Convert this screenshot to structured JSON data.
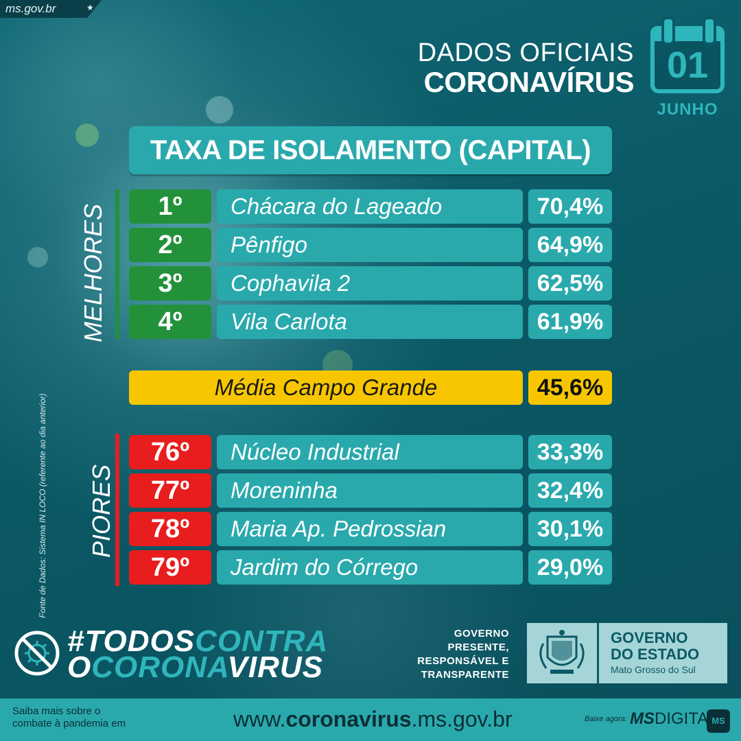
{
  "site_tag": {
    "text": "ms.gov.br",
    "star": "★"
  },
  "header": {
    "line1": "DADOS OFICIAIS",
    "line2": "CORONAVÍRUS",
    "calendar_day": "01",
    "calendar_month": "JUNHO"
  },
  "title": "TAXA DE ISOLAMENTO (CAPITAL)",
  "best": {
    "label": "MELHORES",
    "rows": [
      {
        "rank": "1º",
        "name": "Chácara do Lageado",
        "pct": "70,4%"
      },
      {
        "rank": "2º",
        "name": "Pênfigo",
        "pct": "64,9%"
      },
      {
        "rank": "3º",
        "name": "Cophavila 2",
        "pct": "62,5%"
      },
      {
        "rank": "4º",
        "name": "Vila Carlota",
        "pct": "61,9%"
      }
    ]
  },
  "average": {
    "name": "Média Campo Grande",
    "pct": "45,6%"
  },
  "worst": {
    "label": "PIORES",
    "rows": [
      {
        "rank": "76º",
        "name": "Núcleo Industrial",
        "pct": "33,3%"
      },
      {
        "rank": "77º",
        "name": "Moreninha",
        "pct": "32,4%"
      },
      {
        "rank": "78º",
        "name": "Maria Ap. Pedrossian",
        "pct": "30,1%"
      },
      {
        "rank": "79º",
        "name": "Jardim do Córrego",
        "pct": "29,0%"
      }
    ]
  },
  "source": "Fonte de Dados: Sistema IN LOCO (referente ao dia anterior)",
  "campaign": {
    "todos": "#TODOS",
    "contra": "CONTRA",
    "o": "O",
    "corona": "CORONA",
    "virus": "VIRUS"
  },
  "government": {
    "tagline": [
      "GOVERNO",
      "PRESENTE,",
      "RESPONSÁVEL E",
      "TRANSPARENTE"
    ],
    "name_line1": "GOVERNO",
    "name_line2": "DO ESTADO",
    "state": "Mato Grosso do Sul"
  },
  "footer": {
    "info_line1": "Saiba mais sobre o",
    "info_line2": "combate à pandemia em",
    "url_prefix": "www.",
    "url_bold": "coronavirus",
    "url_suffix": ".ms.gov.br",
    "download_label": "Baixe agora:",
    "app_bold": "MS",
    "app_rest": "DIGITAL",
    "app_icon_text": "MS"
  },
  "colors": {
    "background": "#0b5966",
    "teal_box": "#2aa9ad",
    "best_green": "#23913a",
    "worst_red": "#e81d1d",
    "average_yellow": "#f7c600"
  }
}
